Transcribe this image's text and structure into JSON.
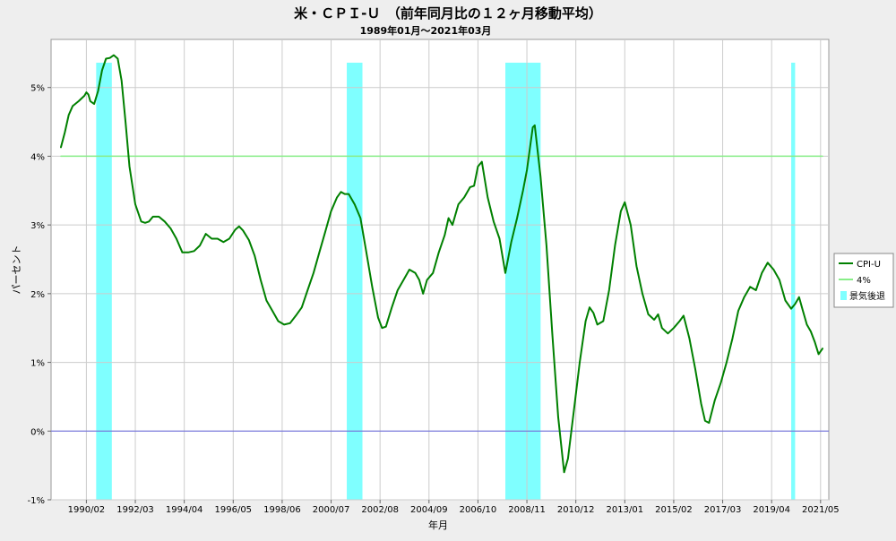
{
  "chart_data": {
    "type": "line",
    "title": "米・ＣＰＩ-Ｕ　（前年同月比の１２ヶ月移動平均）",
    "subtitle": "1989年01月～2021年03月",
    "xlabel": "年月",
    "ylabel": "パーセント",
    "ylim": [
      -1,
      5.7
    ],
    "xlim": [
      "1989-01",
      "2021-06"
    ],
    "grid": true,
    "legend_position": "right",
    "y_ticks": [
      {
        "value": -1,
        "label": "-1%"
      },
      {
        "value": 0,
        "label": "0%"
      },
      {
        "value": 1,
        "label": "1%"
      },
      {
        "value": 2,
        "label": "2%"
      },
      {
        "value": 3,
        "label": "3%"
      },
      {
        "value": 4,
        "label": "4%"
      },
      {
        "value": 5,
        "label": "5%"
      }
    ],
    "x_ticks": [
      {
        "date": "1990-02",
        "label": "1990/02"
      },
      {
        "date": "1992-03",
        "label": "1992/03"
      },
      {
        "date": "1994-04",
        "label": "1994/04"
      },
      {
        "date": "1996-05",
        "label": "1996/05"
      },
      {
        "date": "1998-06",
        "label": "1998/06"
      },
      {
        "date": "2000-07",
        "label": "2000/07"
      },
      {
        "date": "2002-08",
        "label": "2002/08"
      },
      {
        "date": "2004-09",
        "label": "2004/09"
      },
      {
        "date": "2006-10",
        "label": "2006/10"
      },
      {
        "date": "2008-11",
        "label": "2008/11"
      },
      {
        "date": "2010-12",
        "label": "2010/12"
      },
      {
        "date": "2013-01",
        "label": "2013/01"
      },
      {
        "date": "2015-02",
        "label": "2015/02"
      },
      {
        "date": "2017-03",
        "label": "2017/03"
      },
      {
        "date": "2019-04",
        "label": "2019/04"
      },
      {
        "date": "2021-05",
        "label": "2021/05"
      }
    ],
    "recessions": [
      {
        "start": "1990-07",
        "end": "1991-03"
      },
      {
        "start": "2001-03",
        "end": "2001-11"
      },
      {
        "start": "2007-12",
        "end": "2009-06"
      },
      {
        "start": "2020-02",
        "end": "2020-04"
      }
    ],
    "series": [
      {
        "name": "CPI-U",
        "color": "#008000",
        "points": [
          [
            "1989-01",
            4.13
          ],
          [
            "1989-03",
            4.35
          ],
          [
            "1989-05",
            4.6
          ],
          [
            "1989-07",
            4.73
          ],
          [
            "1989-10",
            4.8
          ],
          [
            "1990-01",
            4.88
          ],
          [
            "1990-02",
            4.93
          ],
          [
            "1990-03",
            4.9
          ],
          [
            "1990-04",
            4.8
          ],
          [
            "1990-06",
            4.76
          ],
          [
            "1990-08",
            4.95
          ],
          [
            "1990-10",
            5.25
          ],
          [
            "1990-12",
            5.42
          ],
          [
            "1991-02",
            5.43
          ],
          [
            "1991-04",
            5.47
          ],
          [
            "1991-06",
            5.42
          ],
          [
            "1991-08",
            5.1
          ],
          [
            "1991-10",
            4.5
          ],
          [
            "1991-12",
            3.85
          ],
          [
            "1992-03",
            3.3
          ],
          [
            "1992-06",
            3.05
          ],
          [
            "1992-08",
            3.03
          ],
          [
            "1992-10",
            3.05
          ],
          [
            "1992-12",
            3.12
          ],
          [
            "1993-03",
            3.12
          ],
          [
            "1993-06",
            3.05
          ],
          [
            "1993-09",
            2.95
          ],
          [
            "1993-12",
            2.8
          ],
          [
            "1994-03",
            2.6
          ],
          [
            "1994-06",
            2.6
          ],
          [
            "1994-09",
            2.62
          ],
          [
            "1994-12",
            2.7
          ],
          [
            "1995-03",
            2.87
          ],
          [
            "1995-06",
            2.8
          ],
          [
            "1995-09",
            2.8
          ],
          [
            "1995-12",
            2.75
          ],
          [
            "1996-03",
            2.8
          ],
          [
            "1996-06",
            2.93
          ],
          [
            "1996-08",
            2.98
          ],
          [
            "1996-10",
            2.92
          ],
          [
            "1997-01",
            2.78
          ],
          [
            "1997-04",
            2.55
          ],
          [
            "1997-07",
            2.2
          ],
          [
            "1997-10",
            1.9
          ],
          [
            "1998-01",
            1.75
          ],
          [
            "1998-04",
            1.6
          ],
          [
            "1998-07",
            1.55
          ],
          [
            "1998-10",
            1.57
          ],
          [
            "1999-01",
            1.68
          ],
          [
            "1999-04",
            1.8
          ],
          [
            "1999-07",
            2.05
          ],
          [
            "1999-10",
            2.3
          ],
          [
            "2000-01",
            2.6
          ],
          [
            "2000-04",
            2.9
          ],
          [
            "2000-07",
            3.2
          ],
          [
            "2000-10",
            3.4
          ],
          [
            "2000-12",
            3.48
          ],
          [
            "2001-02",
            3.45
          ],
          [
            "2001-04",
            3.45
          ],
          [
            "2001-07",
            3.3
          ],
          [
            "2001-10",
            3.1
          ],
          [
            "2002-01",
            2.6
          ],
          [
            "2002-04",
            2.1
          ],
          [
            "2002-07",
            1.65
          ],
          [
            "2002-09",
            1.5
          ],
          [
            "2002-11",
            1.52
          ],
          [
            "2003-02",
            1.8
          ],
          [
            "2003-05",
            2.05
          ],
          [
            "2003-08",
            2.2
          ],
          [
            "2003-11",
            2.35
          ],
          [
            "2004-02",
            2.3
          ],
          [
            "2004-04",
            2.2
          ],
          [
            "2004-06",
            2.0
          ],
          [
            "2004-08",
            2.2
          ],
          [
            "2004-11",
            2.3
          ],
          [
            "2005-02",
            2.6
          ],
          [
            "2005-05",
            2.85
          ],
          [
            "2005-07",
            3.1
          ],
          [
            "2005-09",
            3.0
          ],
          [
            "2005-12",
            3.3
          ],
          [
            "2006-03",
            3.4
          ],
          [
            "2006-06",
            3.55
          ],
          [
            "2006-08",
            3.57
          ],
          [
            "2006-10",
            3.85
          ],
          [
            "2006-12",
            3.92
          ],
          [
            "2007-03",
            3.4
          ],
          [
            "2007-06",
            3.05
          ],
          [
            "2007-09",
            2.8
          ],
          [
            "2007-12",
            2.3
          ],
          [
            "2008-03",
            2.75
          ],
          [
            "2008-06",
            3.1
          ],
          [
            "2008-09",
            3.5
          ],
          [
            "2008-11",
            3.8
          ],
          [
            "2009-02",
            4.42
          ],
          [
            "2009-03",
            4.45
          ],
          [
            "2009-06",
            3.7
          ],
          [
            "2009-09",
            2.7
          ],
          [
            "2009-12",
            1.4
          ],
          [
            "2010-03",
            0.2
          ],
          [
            "2010-06",
            -0.6
          ],
          [
            "2010-08",
            -0.4
          ],
          [
            "2010-11",
            0.3
          ],
          [
            "2011-02",
            1.0
          ],
          [
            "2011-05",
            1.6
          ],
          [
            "2011-07",
            1.8
          ],
          [
            "2011-09",
            1.72
          ],
          [
            "2011-11",
            1.55
          ],
          [
            "2012-02",
            1.6
          ],
          [
            "2012-05",
            2.05
          ],
          [
            "2012-08",
            2.7
          ],
          [
            "2012-11",
            3.2
          ],
          [
            "2013-01",
            3.33
          ],
          [
            "2013-04",
            3.0
          ],
          [
            "2013-07",
            2.4
          ],
          [
            "2013-10",
            2.0
          ],
          [
            "2014-01",
            1.7
          ],
          [
            "2014-04",
            1.62
          ],
          [
            "2014-06",
            1.7
          ],
          [
            "2014-08",
            1.5
          ],
          [
            "2014-11",
            1.42
          ],
          [
            "2015-02",
            1.5
          ],
          [
            "2015-05",
            1.6
          ],
          [
            "2015-07",
            1.68
          ],
          [
            "2015-10",
            1.35
          ],
          [
            "2016-01",
            0.9
          ],
          [
            "2016-04",
            0.4
          ],
          [
            "2016-06",
            0.15
          ],
          [
            "2016-08",
            0.12
          ],
          [
            "2016-11",
            0.45
          ],
          [
            "2017-02",
            0.7
          ],
          [
            "2017-05",
            1.0
          ],
          [
            "2017-08",
            1.35
          ],
          [
            "2017-11",
            1.75
          ],
          [
            "2018-02",
            1.95
          ],
          [
            "2018-05",
            2.1
          ],
          [
            "2018-08",
            2.05
          ],
          [
            "2018-11",
            2.3
          ],
          [
            "2019-02",
            2.45
          ],
          [
            "2019-05",
            2.35
          ],
          [
            "2019-08",
            2.2
          ],
          [
            "2019-11",
            1.9
          ],
          [
            "2020-02",
            1.78
          ],
          [
            "2020-04",
            1.85
          ],
          [
            "2020-06",
            1.95
          ],
          [
            "2020-08",
            1.75
          ],
          [
            "2020-10",
            1.55
          ],
          [
            "2020-12",
            1.45
          ],
          [
            "2021-02",
            1.3
          ],
          [
            "2021-04",
            1.12
          ],
          [
            "2021-06",
            1.2
          ]
        ]
      },
      {
        "name": "4%",
        "color": "#88ee88",
        "points": [
          [
            "1989-01",
            4.0
          ],
          [
            "2021-06",
            4.0
          ]
        ]
      }
    ],
    "zero_line_color": "#6666dd",
    "recession_color": "#7fffff",
    "legend": [
      {
        "label": "CPI-U",
        "swatch": "line",
        "color": "#008000"
      },
      {
        "label": "4%",
        "swatch": "line",
        "color": "#88ee88"
      },
      {
        "label": "景気後退",
        "swatch": "box",
        "color": "#7fffff"
      }
    ]
  }
}
